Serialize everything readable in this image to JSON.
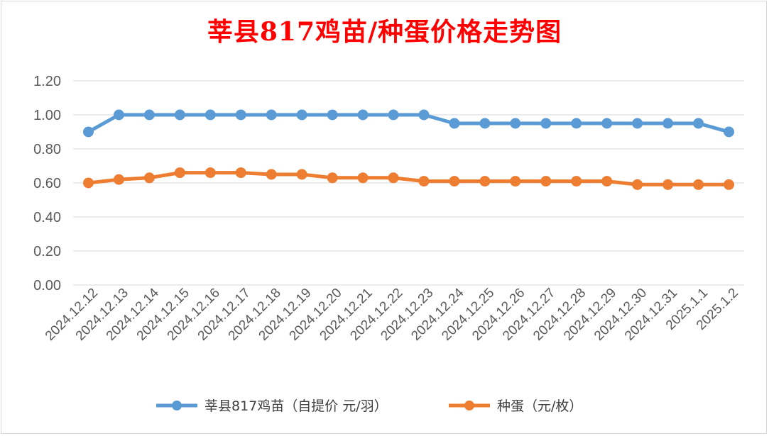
{
  "chart_data": {
    "type": "line",
    "title": "莘县817鸡苗/种蛋价格走势图",
    "xlabel": "",
    "ylabel": "",
    "ylim": [
      0,
      1.2
    ],
    "yticks": [
      "0.00",
      "0.20",
      "0.40",
      "0.60",
      "0.80",
      "1.00",
      "1.20"
    ],
    "categories": [
      "2024.12.12",
      "2024.12.13",
      "2024.12.14",
      "2024.12.15",
      "2024.12.16",
      "2024.12.17",
      "2024.12.18",
      "2024.12.19",
      "2024.12.20",
      "2024.12.21",
      "2024.12.22",
      "2024.12.23",
      "2024.12.24",
      "2024.12.25",
      "2024.12.26",
      "2024.12.27",
      "2024.12.28",
      "2024.12.29",
      "2024.12.30",
      "2024.12.31",
      "2025.1.1",
      "2025.1.2"
    ],
    "series": [
      {
        "name": "莘县817鸡苗（自提价 元/羽）",
        "color": "#5b9bd5",
        "values": [
          0.9,
          1.0,
          1.0,
          1.0,
          1.0,
          1.0,
          1.0,
          1.0,
          1.0,
          1.0,
          1.0,
          1.0,
          0.95,
          0.95,
          0.95,
          0.95,
          0.95,
          0.95,
          0.95,
          0.95,
          0.95,
          0.9
        ]
      },
      {
        "name": "种蛋（元/枚）",
        "color": "#ed7d31",
        "values": [
          0.6,
          0.62,
          0.63,
          0.66,
          0.66,
          0.66,
          0.65,
          0.65,
          0.63,
          0.63,
          0.63,
          0.61,
          0.61,
          0.61,
          0.61,
          0.61,
          0.61,
          0.61,
          0.59,
          0.59,
          0.59,
          0.59
        ]
      }
    ],
    "grid": true,
    "legend_position": "bottom"
  }
}
